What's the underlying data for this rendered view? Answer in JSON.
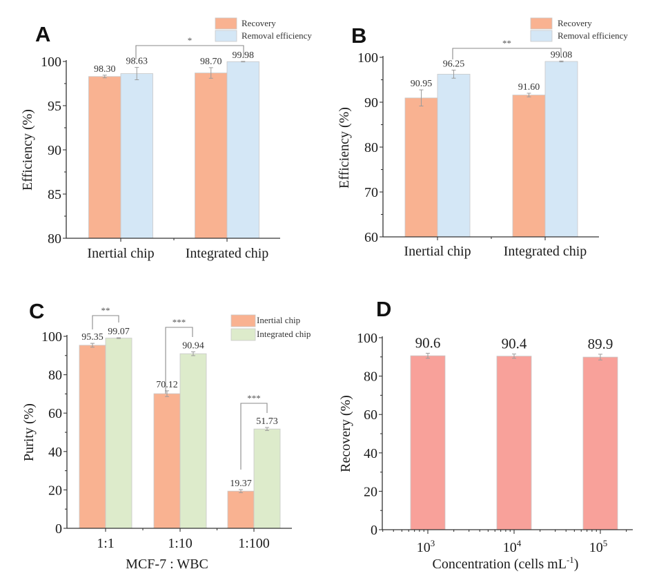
{
  "chart_data": [
    {
      "panel": "A",
      "type": "bar",
      "title": "",
      "xlabel": "",
      "ylabel": "Efficiency (%)",
      "ylim": [
        80,
        100
      ],
      "yticks": [
        80,
        85,
        90,
        95,
        100
      ],
      "categories": [
        "Inertial chip",
        "Integrated chip"
      ],
      "series": [
        {
          "name": "Recovery",
          "color": "#F9B291",
          "values": [
            98.3,
            98.7
          ],
          "errors": [
            0.15,
            0.6
          ],
          "labels": [
            "98.30",
            "98.70"
          ]
        },
        {
          "name": "Removal efficiency",
          "color": "#D4E7F6",
          "values": [
            98.63,
            99.98
          ],
          "errors": [
            0.7,
            0.03
          ],
          "labels": [
            "98.63",
            "99.98"
          ]
        }
      ],
      "legend": "top-right",
      "significance": [
        {
          "between": [
            "Inertial chip / Removal efficiency",
            "Integrated chip / Removal efficiency"
          ],
          "mark": "*"
        }
      ]
    },
    {
      "panel": "B",
      "type": "bar",
      "title": "",
      "xlabel": "",
      "ylabel": "Efficiency (%)",
      "ylim": [
        60,
        100
      ],
      "yticks": [
        60,
        70,
        80,
        90,
        100
      ],
      "categories": [
        "Inertial chip",
        "Integrated chip"
      ],
      "series": [
        {
          "name": "Recovery",
          "color": "#F9B291",
          "values": [
            90.95,
            91.6
          ],
          "errors": [
            1.8,
            0.4
          ],
          "labels": [
            "90.95",
            "91.60"
          ]
        },
        {
          "name": "Removal efficiency",
          "color": "#D4E7F6",
          "values": [
            96.25,
            99.08
          ],
          "errors": [
            0.9,
            0.1
          ],
          "labels": [
            "96.25",
            "99.08"
          ]
        }
      ],
      "legend": "top-right",
      "significance": [
        {
          "between": [
            "Inertial chip / Removal efficiency",
            "Integrated chip / Removal efficiency"
          ],
          "mark": "**"
        }
      ]
    },
    {
      "panel": "C",
      "type": "bar",
      "title": "",
      "xlabel": "MCF-7 : WBC",
      "ylabel": "Purity (%)",
      "ylim": [
        0,
        100
      ],
      "yticks": [
        0,
        20,
        40,
        60,
        80,
        100
      ],
      "categories": [
        "1:1",
        "1:10",
        "1:100"
      ],
      "series": [
        {
          "name": "Inertial chip",
          "color": "#F9B291",
          "values": [
            95.35,
            70.12,
            19.37
          ],
          "errors": [
            1.0,
            1.5,
            0.8
          ],
          "labels": [
            "95.35",
            "70.12",
            "19.37"
          ]
        },
        {
          "name": "Integrated chip",
          "color": "#DDEBCB",
          "values": [
            99.07,
            90.94,
            51.73
          ],
          "errors": [
            0.2,
            1.0,
            0.8
          ],
          "labels": [
            "99.07",
            "90.94",
            "51.73"
          ]
        }
      ],
      "legend": "top-right",
      "significance": [
        {
          "category": "1:1",
          "mark": "**"
        },
        {
          "category": "1:10",
          "mark": "***"
        },
        {
          "category": "1:100",
          "mark": "***"
        }
      ]
    },
    {
      "panel": "D",
      "type": "bar",
      "title": "",
      "xlabel": "Concentration (cells mL",
      "xlabel_sup": "-1",
      "xlabel_end": ")",
      "ylabel": "Recovery (%)",
      "ylim": [
        0,
        100
      ],
      "yticks": [
        0,
        20,
        40,
        60,
        80,
        100
      ],
      "xscale": "log",
      "categories": [
        {
          "base": "10",
          "exp": "3"
        },
        {
          "base": "10",
          "exp": "4"
        },
        {
          "base": "10",
          "exp": "5"
        }
      ],
      "series": [
        {
          "name": "Recovery",
          "color": "#F8A19A",
          "values": [
            90.6,
            90.4,
            89.9
          ],
          "errors": [
            1.3,
            1.1,
            1.5
          ],
          "labels": [
            "90.6",
            "90.4",
            "89.9"
          ]
        }
      ],
      "legend": "none"
    }
  ]
}
